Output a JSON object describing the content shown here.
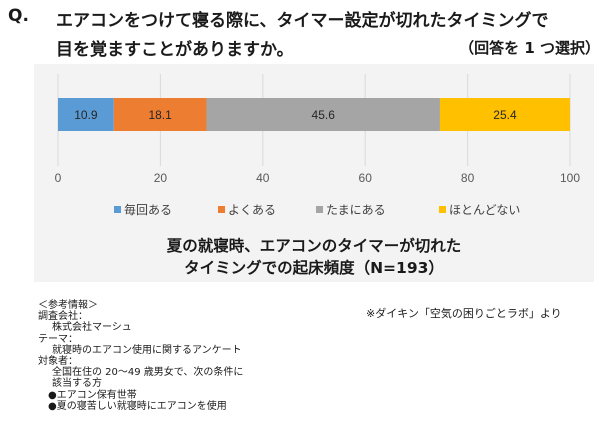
{
  "question": {
    "mark": "Q.",
    "line1": "エアコンをつけて寝る際に、タイマー設定が切れたタイミングで",
    "line2": "目を覚ますことがありますか。",
    "note": "（回答を 1 つ選択）"
  },
  "chart_data": {
    "type": "bar",
    "orientation": "horizontal-stacked",
    "categories": [
      ""
    ],
    "series": [
      {
        "name": "毎回ある",
        "values": [
          10.9
        ],
        "color": "#5b9bd5"
      },
      {
        "name": "よくある",
        "values": [
          18.1
        ],
        "color": "#ed7d31"
      },
      {
        "name": "たまにある",
        "values": [
          45.6
        ],
        "color": "#a5a5a5"
      },
      {
        "name": "ほとんどない",
        "values": [
          25.4
        ],
        "color": "#ffc000"
      }
    ],
    "x_ticks": [
      0,
      20,
      40,
      60,
      80,
      100
    ],
    "xlim": [
      0,
      100
    ],
    "grid": true,
    "legend_position": "bottom",
    "title_lines": [
      "夏の就寝時、エアコンのタイマーが切れた",
      "タイミングでの起床頻度（N=193）"
    ]
  },
  "reference": {
    "heading": "＜参考情報＞",
    "survey_company_label": "調査会社：",
    "survey_company": "株式会社マーシュ",
    "theme_label": "テーマ：",
    "theme": "就寝時のエアコン使用に関するアンケート",
    "target_label": "対象者：",
    "target_line1": "全国在住の 20～49 歳男女で、次の条件に",
    "target_line2": "該当する方",
    "condition1": "●エアコン保有世帯",
    "condition2": "●夏の寝苦しい就寝時にエアコンを使用"
  },
  "source": "※ダイキン「空気の困りごとラボ」より"
}
